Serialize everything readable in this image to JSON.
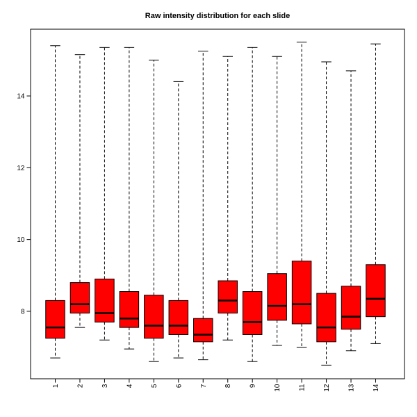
{
  "figure": {
    "background": "#FFFFFF",
    "frame_color": "#000000"
  },
  "chart_data": {
    "type": "boxplot",
    "title": "Raw intensity distribution for each slide",
    "xlabel": "",
    "ylabel": "",
    "categories": [
      "1",
      "2",
      "3",
      "4",
      "5",
      "6",
      "7",
      "8",
      "9",
      "10",
      "11",
      "12",
      "13",
      "14"
    ],
    "y_ticks": [
      8,
      10,
      12,
      14
    ],
    "ylim": [
      6.12,
      15.86
    ],
    "grid": false,
    "legend": "none",
    "box_fill": "#FF0000",
    "line_color": "#000000",
    "whisker_line_style": "dashed",
    "boxes": [
      {
        "label": "1",
        "whisker_low": 6.7,
        "q1": 7.25,
        "median": 7.55,
        "q3": 8.3,
        "whisker_high": 15.4
      },
      {
        "label": "2",
        "whisker_low": 7.55,
        "q1": 7.95,
        "median": 8.2,
        "q3": 8.8,
        "whisker_high": 15.15
      },
      {
        "label": "3",
        "whisker_low": 7.2,
        "q1": 7.7,
        "median": 7.95,
        "q3": 8.9,
        "whisker_high": 15.35
      },
      {
        "label": "4",
        "whisker_low": 6.95,
        "q1": 7.55,
        "median": 7.8,
        "q3": 8.55,
        "whisker_high": 15.35
      },
      {
        "label": "5",
        "whisker_low": 6.6,
        "q1": 7.25,
        "median": 7.6,
        "q3": 8.45,
        "whisker_high": 15.0
      },
      {
        "label": "6",
        "whisker_low": 6.7,
        "q1": 7.35,
        "median": 7.6,
        "q3": 8.3,
        "whisker_high": 14.4
      },
      {
        "label": "7",
        "whisker_low": 6.65,
        "q1": 7.15,
        "median": 7.35,
        "q3": 7.8,
        "whisker_high": 15.25
      },
      {
        "label": "8",
        "whisker_low": 7.2,
        "q1": 7.95,
        "median": 8.3,
        "q3": 8.85,
        "whisker_high": 15.1
      },
      {
        "label": "9",
        "whisker_low": 6.6,
        "q1": 7.35,
        "median": 7.7,
        "q3": 8.55,
        "whisker_high": 15.35
      },
      {
        "label": "10",
        "whisker_low": 7.05,
        "q1": 7.75,
        "median": 8.15,
        "q3": 9.05,
        "whisker_high": 15.1
      },
      {
        "label": "11",
        "whisker_low": 7.0,
        "q1": 7.65,
        "median": 8.2,
        "q3": 9.4,
        "whisker_high": 15.5
      },
      {
        "label": "12",
        "whisker_low": 6.5,
        "q1": 7.15,
        "median": 7.55,
        "q3": 8.5,
        "whisker_high": 14.95
      },
      {
        "label": "13",
        "whisker_low": 6.9,
        "q1": 7.5,
        "median": 7.85,
        "q3": 8.7,
        "whisker_high": 14.7
      },
      {
        "label": "14",
        "whisker_low": 7.1,
        "q1": 7.85,
        "median": 8.35,
        "q3": 9.3,
        "whisker_high": 15.45
      }
    ]
  }
}
